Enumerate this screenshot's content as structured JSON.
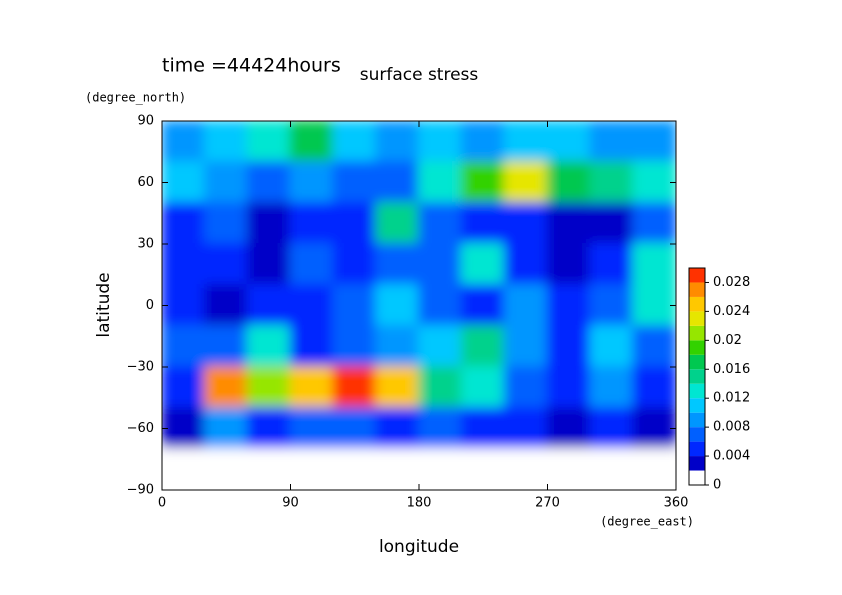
{
  "chart_data": {
    "type": "contour",
    "title": "surface stress",
    "subtitle": "time =44424hours",
    "x_label": "longitude",
    "x_unit": "(degree_east)",
    "y_label": "latitude",
    "y_unit": "(degree_north)",
    "x": [
      15,
      45,
      75,
      105,
      135,
      165,
      195,
      225,
      255,
      285,
      315,
      345
    ],
    "y": [
      80,
      60,
      40,
      20,
      0,
      -20,
      -40,
      -60,
      -80
    ],
    "z": [
      [
        0.008,
        0.01,
        0.012,
        0.016,
        0.01,
        0.008,
        0.01,
        0.008,
        0.01,
        0.01,
        0.008,
        0.008
      ],
      [
        0.01,
        0.008,
        0.006,
        0.008,
        0.006,
        0.006,
        0.012,
        0.018,
        0.022,
        0.016,
        0.014,
        0.012
      ],
      [
        0.004,
        0.006,
        0.002,
        0.004,
        0.004,
        0.014,
        0.006,
        0.004,
        0.004,
        0.002,
        0.002,
        0.006
      ],
      [
        0.004,
        0.004,
        0.002,
        0.006,
        0.004,
        0.006,
        0.006,
        0.012,
        0.004,
        0.002,
        0.004,
        0.012
      ],
      [
        0.004,
        0.002,
        0.004,
        0.004,
        0.006,
        0.01,
        0.006,
        0.004,
        0.008,
        0.004,
        0.006,
        0.012
      ],
      [
        0.006,
        0.006,
        0.012,
        0.004,
        0.006,
        0.008,
        0.01,
        0.014,
        0.008,
        0.004,
        0.01,
        0.006
      ],
      [
        0.004,
        0.026,
        0.02,
        0.024,
        0.028,
        0.024,
        0.014,
        0.012,
        0.006,
        0.004,
        0.008,
        0.004
      ],
      [
        0.002,
        0.008,
        0.004,
        0.006,
        0.006,
        0.004,
        0.006,
        0.004,
        0.004,
        0.002,
        0.004,
        0.002
      ],
      [
        0,
        0,
        0,
        0,
        0,
        0,
        0,
        0,
        0,
        0,
        0,
        0
      ]
    ],
    "xlim": [
      0,
      360
    ],
    "xticks": [
      0,
      90,
      180,
      270,
      360
    ],
    "ylim": [
      -90,
      90
    ],
    "yticks": [
      {
        "value": -90,
        "label": "−90"
      },
      {
        "value": -60,
        "label": "−60"
      },
      {
        "value": -30,
        "label": "−30"
      },
      0,
      30,
      60,
      90
    ],
    "levels": [
      0,
      0.002,
      0.004,
      0.006,
      0.008,
      0.01,
      0.012,
      0.014,
      0.016,
      0.018,
      0.02,
      0.022,
      0.024,
      0.026,
      0.028,
      0.03
    ],
    "colors": [
      "#ffffff",
      "#0000c8",
      "#0028ff",
      "#0060ff",
      "#0096ff",
      "#00c8ff",
      "#00e6d2",
      "#00d28c",
      "#00c850",
      "#32d200",
      "#96e600",
      "#e6e600",
      "#ffc800",
      "#ff8c00",
      "#ff3200"
    ],
    "colorbar_lim": [
      0,
      0.03
    ],
    "colorbar_ticks": [
      0,
      0.004,
      0.008,
      0.012,
      0.016,
      0.02,
      0.024,
      0.028
    ]
  }
}
